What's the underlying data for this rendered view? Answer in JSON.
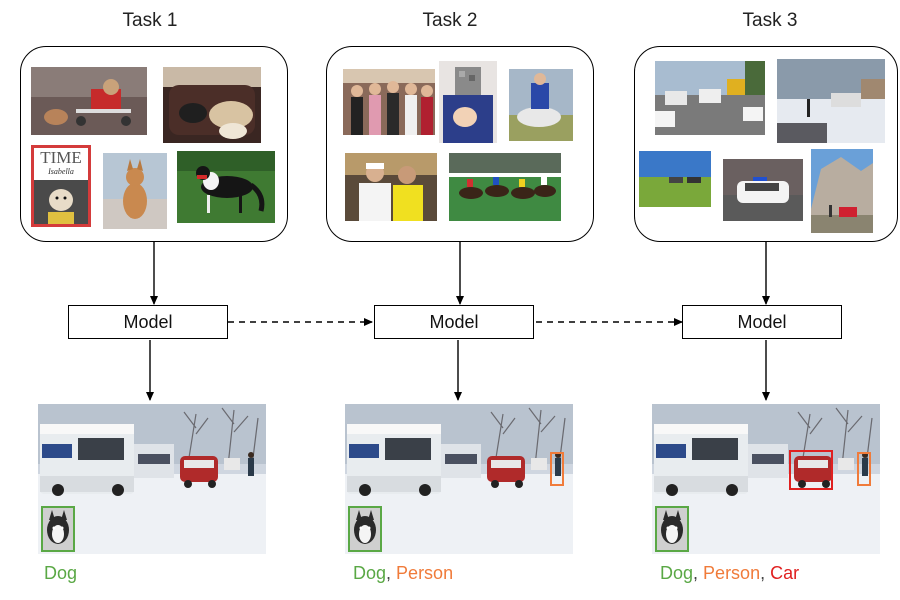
{
  "tasks": [
    {
      "title": "Task 1",
      "model_label": "Model"
    },
    {
      "title": "Task 2",
      "model_label": "Model"
    },
    {
      "title": "Task 3",
      "model_label": "Model"
    }
  ],
  "magazine_cover": {
    "masthead": "TIME",
    "name": "Isabella"
  },
  "outputs": [
    {
      "labels": [
        {
          "text": "Dog",
          "color": "#5aa845"
        }
      ]
    },
    {
      "labels": [
        {
          "text": "Dog",
          "color": "#5aa845"
        },
        {
          "text": ", ",
          "color": "#444444"
        },
        {
          "text": "Person",
          "color": "#f07b3a"
        }
      ]
    },
    {
      "labels": [
        {
          "text": "Dog",
          "color": "#5aa845"
        },
        {
          "text": ", ",
          "color": "#444444"
        },
        {
          "text": "Person",
          "color": "#f07b3a"
        },
        {
          "text": ", ",
          "color": "#444444"
        },
        {
          "text": "Car",
          "color": "#e02020"
        }
      ]
    }
  ],
  "colors": {
    "dog": "#5aa845",
    "person": "#f07b3a",
    "car": "#e02020"
  }
}
